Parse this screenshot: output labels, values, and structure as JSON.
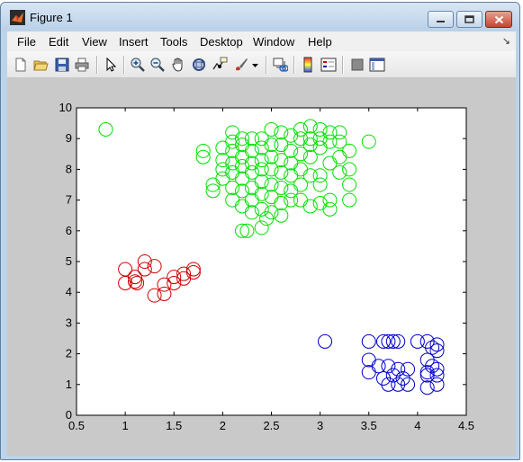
{
  "window": {
    "title": "Figure 1",
    "controls": [
      "minimize-icon",
      "maximize-icon",
      "close-icon"
    ]
  },
  "menu": {
    "items": [
      "File",
      "Edit",
      "View",
      "Insert",
      "Tools",
      "Desktop",
      "Window",
      "Help"
    ],
    "corner_icon": "dock-arrow-icon"
  },
  "toolbar": {
    "buttons": [
      "new-figure-icon",
      "open-file-icon",
      "save-icon",
      "print-icon",
      "edit-plot-arrow-icon",
      "zoom-in-icon",
      "zoom-out-icon",
      "pan-hand-icon",
      "rotate-3d-icon",
      "data-cursor-icon",
      "brush-icon",
      "brush-dropdown-icon",
      "link-plot-icon",
      "colorbar-icon",
      "legend-icon",
      "hide-plot-tools-icon",
      "show-plot-tools-icon"
    ]
  },
  "colors": {
    "cluster_red": "#d00000",
    "cluster_green": "#00e000",
    "cluster_blue": "#0000d0",
    "figure_background": "#c9c9c9",
    "axes_background": "#ffffff"
  },
  "chart_data": {
    "type": "scatter",
    "marker": "open-circle",
    "xlim": [
      0.5,
      4.5
    ],
    "ylim": [
      0,
      10
    ],
    "xticks": [
      "0.5",
      "1",
      "1.5",
      "2",
      "2.5",
      "3",
      "3.5",
      "4",
      "4.5"
    ],
    "yticks": [
      "0",
      "1",
      "2",
      "3",
      "4",
      "5",
      "6",
      "7",
      "8",
      "9",
      "10"
    ],
    "grid": false,
    "legend": "none",
    "series": [
      {
        "color": "#d00000",
        "points": [
          [
            1.0,
            4.75
          ],
          [
            1.0,
            4.3
          ],
          [
            1.1,
            4.35
          ],
          [
            1.1,
            4.5
          ],
          [
            1.12,
            4.3
          ],
          [
            1.2,
            5.0
          ],
          [
            1.2,
            4.75
          ],
          [
            1.3,
            4.85
          ],
          [
            1.3,
            3.9
          ],
          [
            1.4,
            3.95
          ],
          [
            1.4,
            4.25
          ],
          [
            1.5,
            4.3
          ],
          [
            1.5,
            4.5
          ],
          [
            1.6,
            4.6
          ],
          [
            1.6,
            4.45
          ],
          [
            1.7,
            4.75
          ],
          [
            1.7,
            4.65
          ]
        ]
      },
      {
        "color": "#00e000",
        "points": [
          [
            0.8,
            9.3
          ],
          [
            1.8,
            8.6
          ],
          [
            1.8,
            8.4
          ],
          [
            1.9,
            7.5
          ],
          [
            1.9,
            7.3
          ],
          [
            2.0,
            8.7
          ],
          [
            2.0,
            8.3
          ],
          [
            2.0,
            8.0
          ],
          [
            2.0,
            7.7
          ],
          [
            2.1,
            9.2
          ],
          [
            2.1,
            8.9
          ],
          [
            2.1,
            8.6
          ],
          [
            2.1,
            8.2
          ],
          [
            2.1,
            7.9
          ],
          [
            2.1,
            7.4
          ],
          [
            2.1,
            7.0
          ],
          [
            2.2,
            9.0
          ],
          [
            2.2,
            8.8
          ],
          [
            2.2,
            8.4
          ],
          [
            2.2,
            8.1
          ],
          [
            2.2,
            7.7
          ],
          [
            2.2,
            7.3
          ],
          [
            2.2,
            6.8
          ],
          [
            2.2,
            6.0
          ],
          [
            2.25,
            6.0
          ],
          [
            2.3,
            9.0
          ],
          [
            2.3,
            8.6
          ],
          [
            2.3,
            8.2
          ],
          [
            2.3,
            7.9
          ],
          [
            2.3,
            7.4
          ],
          [
            2.3,
            7.0
          ],
          [
            2.3,
            6.6
          ],
          [
            2.4,
            9.0
          ],
          [
            2.4,
            8.7
          ],
          [
            2.4,
            8.3
          ],
          [
            2.4,
            8.0
          ],
          [
            2.4,
            7.6
          ],
          [
            2.4,
            7.2
          ],
          [
            2.4,
            6.7
          ],
          [
            2.4,
            6.1
          ],
          [
            2.45,
            6.4
          ],
          [
            2.5,
            9.3
          ],
          [
            2.5,
            8.8
          ],
          [
            2.5,
            8.4
          ],
          [
            2.5,
            8.0
          ],
          [
            2.5,
            7.5
          ],
          [
            2.5,
            7.1
          ],
          [
            2.5,
            6.6
          ],
          [
            2.6,
            9.2
          ],
          [
            2.6,
            8.8
          ],
          [
            2.6,
            8.3
          ],
          [
            2.6,
            7.9
          ],
          [
            2.6,
            7.4
          ],
          [
            2.6,
            6.9
          ],
          [
            2.6,
            6.5
          ],
          [
            2.7,
            9.1
          ],
          [
            2.7,
            8.6
          ],
          [
            2.7,
            8.2
          ],
          [
            2.7,
            7.8
          ],
          [
            2.7,
            7.3
          ],
          [
            2.7,
            7.0
          ],
          [
            2.8,
            9.3
          ],
          [
            2.8,
            9.0
          ],
          [
            2.8,
            8.5
          ],
          [
            2.8,
            8.0
          ],
          [
            2.8,
            7.5
          ],
          [
            2.8,
            7.0
          ],
          [
            2.9,
            9.4
          ],
          [
            2.9,
            9.0
          ],
          [
            2.9,
            8.8
          ],
          [
            2.9,
            8.4
          ],
          [
            2.9,
            7.8
          ],
          [
            2.9,
            6.8
          ],
          [
            3.0,
            9.3
          ],
          [
            3.0,
            9.0
          ],
          [
            3.0,
            8.7
          ],
          [
            3.0,
            7.8
          ],
          [
            3.0,
            7.5
          ],
          [
            3.0,
            6.9
          ],
          [
            3.1,
            9.2
          ],
          [
            3.1,
            8.9
          ],
          [
            3.1,
            8.2
          ],
          [
            3.1,
            7.0
          ],
          [
            3.1,
            6.7
          ],
          [
            3.2,
            9.2
          ],
          [
            3.2,
            8.9
          ],
          [
            3.2,
            8.4
          ],
          [
            3.2,
            7.9
          ],
          [
            3.3,
            8.6
          ],
          [
            3.3,
            8.0
          ],
          [
            3.3,
            7.5
          ],
          [
            3.3,
            7.0
          ],
          [
            3.5,
            8.9
          ]
        ]
      },
      {
        "color": "#0000d0",
        "points": [
          [
            3.05,
            2.4
          ],
          [
            3.5,
            2.4
          ],
          [
            3.5,
            1.8
          ],
          [
            3.5,
            1.4
          ],
          [
            3.6,
            1.6
          ],
          [
            3.65,
            2.4
          ],
          [
            3.65,
            1.2
          ],
          [
            3.7,
            2.4
          ],
          [
            3.7,
            1.6
          ],
          [
            3.7,
            1.0
          ],
          [
            3.75,
            2.4
          ],
          [
            3.75,
            1.3
          ],
          [
            3.8,
            2.4
          ],
          [
            3.8,
            1.5
          ],
          [
            3.8,
            1.0
          ],
          [
            3.85,
            1.2
          ],
          [
            3.9,
            1.5
          ],
          [
            3.9,
            1.0
          ],
          [
            4.0,
            2.4
          ],
          [
            4.1,
            2.4
          ],
          [
            4.1,
            1.8
          ],
          [
            4.1,
            1.4
          ],
          [
            4.1,
            1.3
          ],
          [
            4.1,
            0.9
          ],
          [
            4.15,
            2.2
          ],
          [
            4.15,
            1.6
          ],
          [
            4.2,
            2.3
          ],
          [
            4.2,
            2.1
          ],
          [
            4.2,
            1.5
          ],
          [
            4.2,
            1.3
          ],
          [
            4.2,
            1.0
          ]
        ]
      }
    ]
  }
}
